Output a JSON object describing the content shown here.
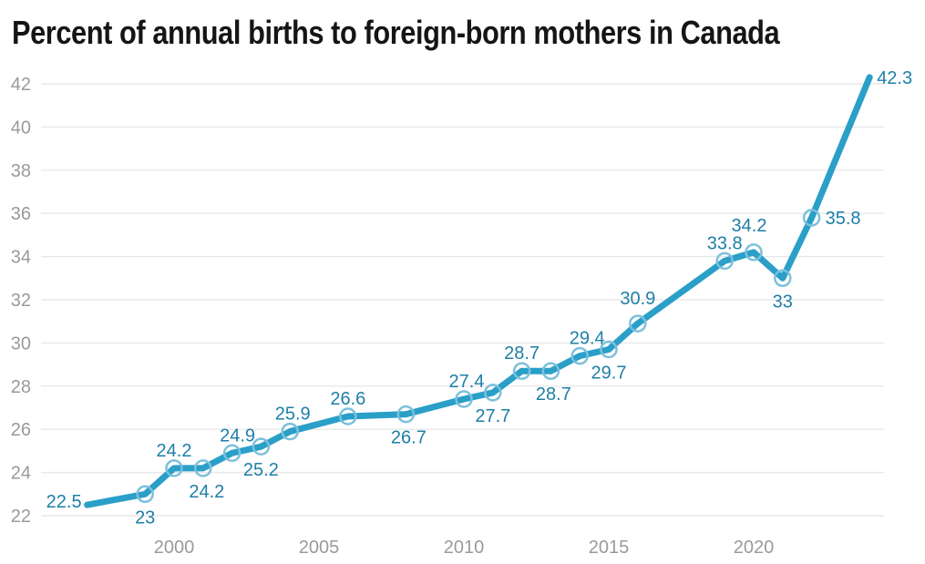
{
  "chart_data": {
    "type": "line",
    "title": "Percent of annual births to foreign-born mothers in Canada",
    "series_name": "Percent of annual births to foreign-born mothers",
    "x": [
      1997,
      1999,
      2000,
      2001,
      2002,
      2003,
      2004,
      2006,
      2008,
      2010,
      2011,
      2012,
      2013,
      2014,
      2015,
      2016,
      2019,
      2020,
      2021,
      2022,
      2024
    ],
    "values": [
      22.5,
      23,
      24.2,
      24.2,
      24.9,
      25.2,
      25.9,
      26.6,
      26.7,
      27.4,
      27.7,
      28.7,
      28.7,
      29.4,
      29.7,
      30.9,
      33.8,
      34.2,
      33,
      35.8,
      42.3
    ],
    "points": [
      {
        "year": 1997,
        "value": 22.5,
        "label": "22.5",
        "pos": "left",
        "marker": false
      },
      {
        "year": 1999,
        "value": 23,
        "label": "23",
        "pos": "below",
        "marker": true
      },
      {
        "year": 2000,
        "value": 24.2,
        "label": "24.2",
        "pos": "above",
        "marker": true
      },
      {
        "year": 2001,
        "value": 24.2,
        "label": "24.2",
        "pos": "below",
        "marker": true,
        "dx": 4
      },
      {
        "year": 2002,
        "value": 24.9,
        "label": "24.9",
        "pos": "above",
        "marker": true,
        "dx": 6
      },
      {
        "year": 2003,
        "value": 25.2,
        "label": "25.2",
        "pos": "below",
        "marker": true
      },
      {
        "year": 2004,
        "value": 25.9,
        "label": "25.9",
        "pos": "above",
        "marker": true,
        "dx": 3
      },
      {
        "year": 2006,
        "value": 26.6,
        "label": "26.6",
        "pos": "above",
        "marker": true
      },
      {
        "year": 2008,
        "value": 26.7,
        "label": "26.7",
        "pos": "below",
        "marker": true,
        "dx": 3
      },
      {
        "year": 2010,
        "value": 27.4,
        "label": "27.4",
        "pos": "above",
        "marker": true,
        "dx": 3
      },
      {
        "year": 2011,
        "value": 27.7,
        "label": "27.7",
        "pos": "below",
        "marker": true
      },
      {
        "year": 2012,
        "value": 28.7,
        "label": "28.7",
        "pos": "above",
        "marker": true
      },
      {
        "year": 2013,
        "value": 28.7,
        "label": "28.7",
        "pos": "below",
        "marker": true,
        "dx": 3
      },
      {
        "year": 2014,
        "value": 29.4,
        "label": "29.4",
        "pos": "above",
        "marker": true,
        "dx": 8
      },
      {
        "year": 2015,
        "value": 29.7,
        "label": "29.7",
        "pos": "below",
        "marker": true
      },
      {
        "year": 2016,
        "value": 30.9,
        "label": "30.9",
        "pos": "above",
        "marker": true,
        "dy": -8
      },
      {
        "year": 2019,
        "value": 33.8,
        "label": "33.8",
        "pos": "above",
        "marker": true
      },
      {
        "year": 2020,
        "value": 34.2,
        "label": "34.2",
        "pos": "above",
        "marker": true,
        "dx": -5,
        "dy": -10
      },
      {
        "year": 2021,
        "value": 33,
        "label": "33",
        "pos": "below",
        "marker": true
      },
      {
        "year": 2022,
        "value": 35.8,
        "label": "35.8",
        "pos": "right",
        "marker": true
      },
      {
        "year": 2024,
        "value": 42.3,
        "label": "42.3",
        "pos": "right",
        "marker": false,
        "dx": -7
      }
    ],
    "x_ticks": [
      "2000",
      "2005",
      "2010",
      "2015",
      "2020"
    ],
    "y_ticks": [
      "22",
      "24",
      "26",
      "28",
      "30",
      "32",
      "34",
      "36",
      "38",
      "40",
      "42"
    ],
    "xlim": [
      1996.5,
      2024.5
    ],
    "ylim": [
      22,
      42.3
    ],
    "grid": "horizontal-only",
    "legend": "none",
    "marker_style": "open-circle"
  },
  "colors": {
    "line": "#2A9FC8",
    "marker": "#7CC0DB",
    "point_label": "#1E7FA7",
    "axis_text": "#9A9A9A",
    "gridline": "#E8E8E8",
    "title": "#151515",
    "background": "#FFFFFF"
  }
}
